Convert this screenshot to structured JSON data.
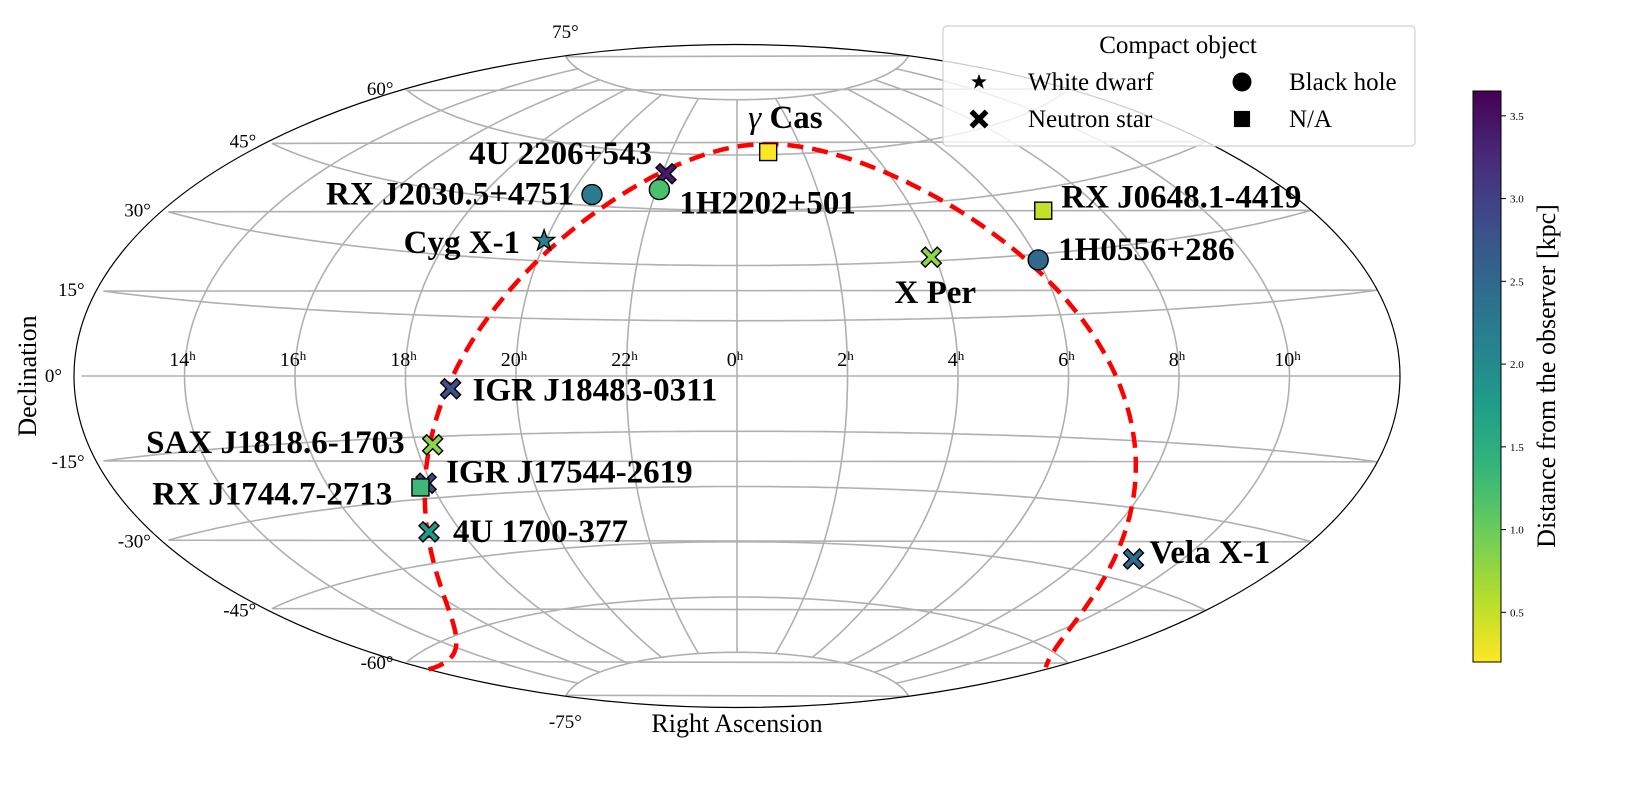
{
  "chart_data": {
    "type": "scatter",
    "projection": "aitoff",
    "xlabel": "Right Ascension",
    "ylabel": "Declination",
    "ra_ticks": [
      {
        "h": 14,
        "label": "14",
        "sup": "h"
      },
      {
        "h": 16,
        "label": "16",
        "sup": "h"
      },
      {
        "h": 18,
        "label": "18",
        "sup": "h"
      },
      {
        "h": 20,
        "label": "20",
        "sup": "h"
      },
      {
        "h": 22,
        "label": "22",
        "sup": "h"
      },
      {
        "h": 0,
        "label": "0",
        "sup": "h"
      },
      {
        "h": 2,
        "label": "2",
        "sup": "h"
      },
      {
        "h": 4,
        "label": "4",
        "sup": "h"
      },
      {
        "h": 6,
        "label": "6",
        "sup": "h"
      },
      {
        "h": 8,
        "label": "8",
        "sup": "h"
      },
      {
        "h": 10,
        "label": "10",
        "sup": "h"
      }
    ],
    "dec_ticks": [
      {
        "dec": 75,
        "label": "75°"
      },
      {
        "dec": 60,
        "label": "60°"
      },
      {
        "dec": 45,
        "label": "45°"
      },
      {
        "dec": 30,
        "label": "30°"
      },
      {
        "dec": 15,
        "label": "15°"
      },
      {
        "dec": 0,
        "label": "0°"
      },
      {
        "dec": -15,
        "label": "-15°"
      },
      {
        "dec": -30,
        "label": "-30°"
      },
      {
        "dec": -45,
        "label": "-45°"
      },
      {
        "dec": -60,
        "label": "-60°"
      },
      {
        "dec": -75,
        "label": "-75°"
      }
    ],
    "grid": true,
    "galactic_plane_color": "#ff0000",
    "sources": [
      {
        "name": "γ Cas",
        "name_symbol": "γ",
        "name_rest": " Cas",
        "ra_h": 0.95,
        "dec": 60.7,
        "type": "na",
        "distance_kpc": 0.2
      },
      {
        "name": "4U 2206+543",
        "ra_h": 22.1,
        "dec": 54.5,
        "type": "neutron-star",
        "distance_kpc": 3.4
      },
      {
        "name": "RX J2030.5+4751",
        "ra_h": 20.5,
        "dec": 47.9,
        "type": "black-hole",
        "distance_kpc": 2.2
      },
      {
        "name": "1H2202+501",
        "ra_h": 22.07,
        "dec": 50.2,
        "type": "black-hole",
        "distance_kpc": 1.2
      },
      {
        "name": "Cyg X-1",
        "ra_h": 19.97,
        "dec": 35.2,
        "type": "white-dwarf",
        "distance_kpc": 2.1
      },
      {
        "name": "RX J0648.1-4419",
        "ra_h": 6.8,
        "dec": 40.0,
        "type": "na",
        "distance_kpc": 0.5
      },
      {
        "name": "X Per",
        "ra_h": 3.92,
        "dec": 31.0,
        "type": "neutron-star",
        "distance_kpc": 0.8
      },
      {
        "name": "1H0556+286",
        "ra_h": 6.0,
        "dec": 28.6,
        "type": "black-hole",
        "distance_kpc": 2.5
      },
      {
        "name": "IGR J18483-0311",
        "ra_h": 18.81,
        "dec": -3.2,
        "type": "neutron-star",
        "distance_kpc": 2.8
      },
      {
        "name": "SAX J1818.6-1703",
        "ra_h": 18.31,
        "dec": -17.05,
        "type": "neutron-star",
        "distance_kpc": 0.8
      },
      {
        "name": "IGR J17544-2619",
        "ra_h": 17.9,
        "dec": -26.3,
        "type": "neutron-star",
        "distance_kpc": 2.9
      },
      {
        "name": "RX J1744.7-2713",
        "ra_h": 17.75,
        "dec": -27.2,
        "type": "na",
        "distance_kpc": 1.3
      },
      {
        "name": "4U 1700-377",
        "ra_h": 17.33,
        "dec": -37.8,
        "type": "neutron-star",
        "distance_kpc": 1.8
      },
      {
        "name": "Vela X-1",
        "ra_h": 9.03,
        "dec": -40.5,
        "type": "neutron-star",
        "distance_kpc": 2.5
      }
    ],
    "legend": {
      "title": "Compact object",
      "position": "top-right",
      "entries": [
        {
          "type": "white-dwarf",
          "label": "White dwarf",
          "marker": "star"
        },
        {
          "type": "black-hole",
          "label": "Black hole",
          "marker": "circle"
        },
        {
          "type": "neutron-star",
          "label": "Neutron star",
          "marker": "x"
        },
        {
          "type": "na",
          "label": "N/A",
          "marker": "square"
        }
      ]
    },
    "colorbar": {
      "label": "Distance from the observer [kpc]",
      "colormap": "viridis_r",
      "vmin": 0.2,
      "vmax": 3.65,
      "ticks": [
        "0.5",
        "1.0",
        "1.5",
        "2.0",
        "2.5",
        "3.0",
        "3.5"
      ]
    }
  }
}
